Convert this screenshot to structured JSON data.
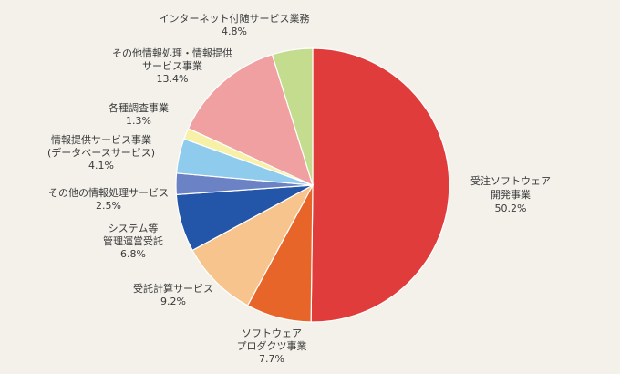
{
  "chart_data": {
    "type": "pie",
    "start": "12 o'clock",
    "direction": "clockwise",
    "slices": [
      {
        "label": [
          "受注ソフトウェア",
          "開発事業"
        ],
        "value": 50.2,
        "value_label": "50.2%",
        "color": "#e03c3c"
      },
      {
        "label": [
          "ソフトウェア",
          "プロダクツ事業"
        ],
        "value": 7.7,
        "value_label": "7.7%",
        "color": "#e8652a"
      },
      {
        "label": [
          "受託計算サービス"
        ],
        "value": 9.2,
        "value_label": "9.2%",
        "color": "#f6c48c"
      },
      {
        "label": [
          "システム等",
          "管理運営受託"
        ],
        "value": 6.8,
        "value_label": "6.8%",
        "color": "#2356a8"
      },
      {
        "label": [
          "その他の情報処理サービス"
        ],
        "value": 2.5,
        "value_label": "2.5%",
        "color": "#6b82c4"
      },
      {
        "label": [
          "情報提供サービス事業",
          "(データベースサービス)"
        ],
        "value": 4.1,
        "value_label": "4.1%",
        "color": "#8ecbec"
      },
      {
        "label": [
          "各種調査事業"
        ],
        "value": 1.3,
        "value_label": "1.3%",
        "color": "#f7f1a8"
      },
      {
        "label": [
          "その他情報処理・情報提供",
          "サービス事業"
        ],
        "value": 13.4,
        "value_label": "13.4%",
        "color": "#f0a0a0"
      },
      {
        "label": [
          "インターネット付随サービス業務"
        ],
        "value": 4.8,
        "value_label": "4.8%",
        "color": "#c4dc8e"
      }
    ]
  }
}
